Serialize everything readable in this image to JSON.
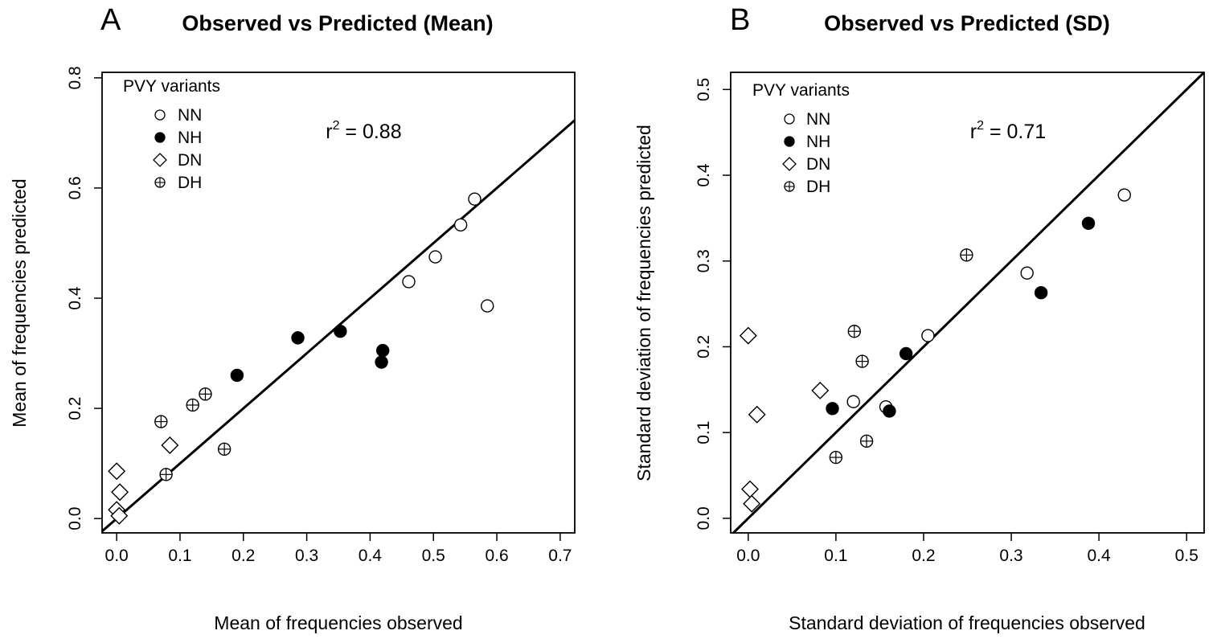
{
  "chart_data": [
    {
      "type": "scatter",
      "panel_letter": "A",
      "title": "Observed vs Predicted (Mean)",
      "xlabel": "Mean of frequencies observed",
      "ylabel": "Mean of frequencies predicted",
      "xlim": [
        -0.023,
        0.723
      ],
      "ylim": [
        -0.026,
        0.81
      ],
      "x_ticks": [
        "0.0",
        "0.1",
        "0.2",
        "0.3",
        "0.4",
        "0.5",
        "0.6",
        "0.7"
      ],
      "x_tick_values": [
        0,
        0.1,
        0.2,
        0.3,
        0.4,
        0.5,
        0.6,
        0.7
      ],
      "y_ticks": [
        "0.0",
        "0.2",
        "0.4",
        "0.6",
        "0.8"
      ],
      "y_tick_values": [
        0,
        0.2,
        0.4,
        0.6,
        0.8
      ],
      "reference_line": "y = x",
      "annotation": {
        "r": "r",
        "exp": "2",
        "eq": " = 0.88",
        "x": 0.33,
        "y": 0.69
      },
      "legend": {
        "title": "PVY variants",
        "placement": "top-left"
      },
      "series": [
        {
          "name": "NN",
          "marker": "open-circle",
          "points": [
            [
              0.565,
              0.58
            ],
            [
              0.543,
              0.533
            ],
            [
              0.503,
              0.475
            ],
            [
              0.461,
              0.43
            ],
            [
              0.585,
              0.386
            ]
          ]
        },
        {
          "name": "NH",
          "marker": "filled-circle",
          "points": [
            [
              0.19,
              0.26
            ],
            [
              0.286,
              0.328
            ],
            [
              0.353,
              0.34
            ],
            [
              0.42,
              0.305
            ],
            [
              0.418,
              0.284
            ]
          ]
        },
        {
          "name": "DN",
          "marker": "open-diamond",
          "points": [
            [
              0.0,
              0.086
            ],
            [
              0.084,
              0.133
            ],
            [
              0.005,
              0.048
            ],
            [
              0.0,
              0.016
            ],
            [
              0.004,
              0.005
            ]
          ]
        },
        {
          "name": "DH",
          "marker": "circle-plus",
          "points": [
            [
              0.07,
              0.176
            ],
            [
              0.12,
              0.206
            ],
            [
              0.14,
              0.226
            ],
            [
              0.17,
              0.126
            ],
            [
              0.078,
              0.08
            ]
          ]
        }
      ]
    },
    {
      "type": "scatter",
      "panel_letter": "B",
      "title": "Observed vs Predicted (SD)",
      "xlabel": "Standard deviation of frequencies observed",
      "ylabel": "Standard deviation of frequencies predicted",
      "xlim": [
        -0.02,
        0.52
      ],
      "ylim": [
        -0.017,
        0.52
      ],
      "x_ticks": [
        "0.0",
        "0.1",
        "0.2",
        "0.3",
        "0.4",
        "0.5"
      ],
      "x_tick_values": [
        0,
        0.1,
        0.2,
        0.3,
        0.4,
        0.5
      ],
      "y_ticks": [
        "0.0",
        "0.1",
        "0.2",
        "0.3",
        "0.4",
        "0.5"
      ],
      "y_tick_values": [
        0,
        0.1,
        0.2,
        0.3,
        0.4,
        0.5
      ],
      "reference_line": "y = x",
      "annotation": {
        "r": "r",
        "exp": "2",
        "eq": " = 0.71",
        "x": 0.253,
        "y": 0.443
      },
      "legend": {
        "title": "PVY variants",
        "placement": "top-left"
      },
      "series": [
        {
          "name": "NN",
          "marker": "open-circle",
          "points": [
            [
              0.429,
              0.377
            ],
            [
              0.318,
              0.286
            ],
            [
              0.205,
              0.213
            ],
            [
              0.12,
              0.136
            ],
            [
              0.157,
              0.13
            ]
          ]
        },
        {
          "name": "NH",
          "marker": "filled-circle",
          "points": [
            [
              0.388,
              0.344
            ],
            [
              0.334,
              0.263
            ],
            [
              0.18,
              0.192
            ],
            [
              0.096,
              0.128
            ],
            [
              0.161,
              0.125
            ]
          ]
        },
        {
          "name": "DN",
          "marker": "open-diamond",
          "points": [
            [
              0.0,
              0.213
            ],
            [
              0.082,
              0.149
            ],
            [
              0.01,
              0.121
            ],
            [
              0.002,
              0.034
            ],
            [
              0.004,
              0.017
            ]
          ]
        },
        {
          "name": "DH",
          "marker": "circle-plus",
          "points": [
            [
              0.249,
              0.307
            ],
            [
              0.121,
              0.218
            ],
            [
              0.13,
              0.183
            ],
            [
              0.135,
              0.09
            ],
            [
              0.1,
              0.071
            ]
          ]
        }
      ]
    }
  ]
}
